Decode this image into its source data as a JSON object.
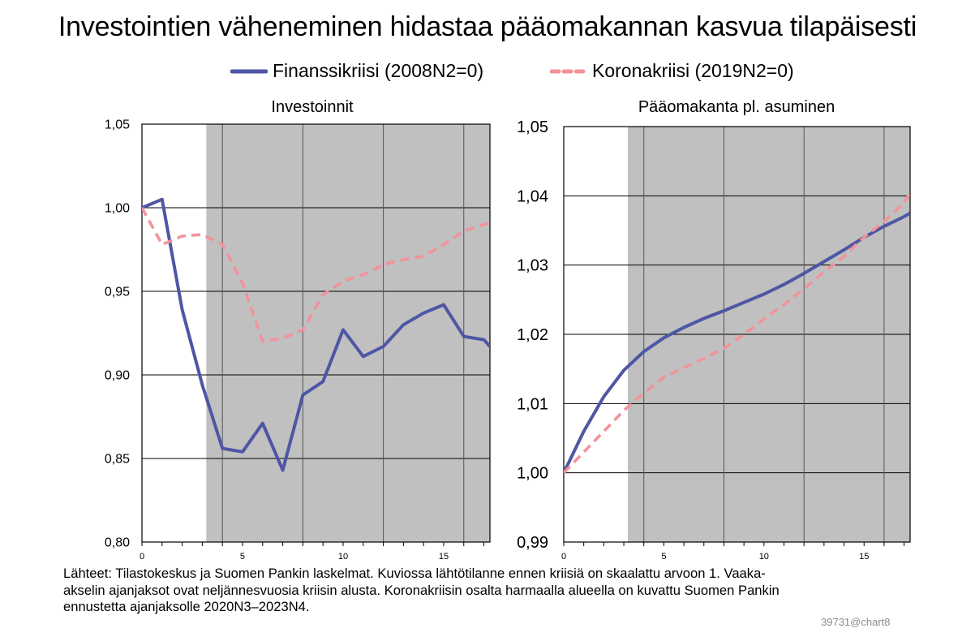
{
  "title": "Investointien väheneminen hidastaa pääomakannan kasvua tilapäisesti",
  "legend": [
    {
      "label": "Finanssikriisi (2008N2=0)",
      "color": "#4f56a4",
      "style": "solid"
    },
    {
      "label": "Koronakriisi (2019N2=0)",
      "color": "#f2939b",
      "style": "dashed"
    }
  ],
  "footnote": [
    "Lähteet: Tilastokeskus ja Suomen Pankin laskelmat. Kuviossa lähtötilanne ennen kriisiä on skaalattu arvoon 1. Vaaka-",
    "akselin ajanjaksot ovat neljännesvuosia  kriisin alusta. Koronakriisin osalta harmaalla alueella on kuvattu Suomen Pankin",
    "ennustetta ajanjaksolle 2020N3–2023N4."
  ],
  "stamp": "39731@chart8",
  "chart_data": [
    {
      "type": "line",
      "title": "Investoinnit",
      "xlim": [
        0,
        17.3
      ],
      "ylim": [
        0.8,
        1.05
      ],
      "xticks": [
        0,
        5,
        10,
        15
      ],
      "xtick_labels": [
        "0",
        "5",
        "10",
        "15"
      ],
      "yticks": [
        0.8,
        0.85,
        0.9,
        0.95,
        1.0,
        1.05
      ],
      "ytick_labels": [
        "0,80",
        "0,85",
        "0,90",
        "0,95",
        "1,00",
        "1,05"
      ],
      "shaded_from": 3.2,
      "shade_color": "#c0c0c0",
      "grid": true,
      "series": [
        {
          "name": "Finanssikriisi (2008N2=0)",
          "color": "#4f56a4",
          "dash": false,
          "x": [
            0,
            1,
            2,
            3,
            4,
            5,
            6,
            7,
            8,
            9,
            10,
            11,
            12,
            13,
            14,
            15,
            16,
            17,
            17.3
          ],
          "values": [
            1.0,
            1.005,
            0.939,
            0.894,
            0.856,
            0.854,
            0.871,
            0.843,
            0.888,
            0.896,
            0.927,
            0.911,
            0.917,
            0.93,
            0.937,
            0.942,
            0.923,
            0.921,
            0.917
          ]
        },
        {
          "name": "Koronakriisi (2019N2=0)",
          "color": "#f2939b",
          "dash": true,
          "x": [
            0,
            1,
            2,
            3,
            4,
            5,
            6,
            7,
            8,
            9,
            10,
            11,
            12,
            13,
            14,
            15,
            16,
            17,
            17.3
          ],
          "values": [
            1.0,
            0.978,
            0.983,
            0.984,
            0.978,
            0.955,
            0.92,
            0.922,
            0.927,
            0.948,
            0.956,
            0.96,
            0.966,
            0.969,
            0.971,
            0.978,
            0.986,
            0.99,
            0.991
          ]
        }
      ]
    },
    {
      "type": "line",
      "title": "Pääomakanta pl. asuminen",
      "xlim": [
        0,
        17.3
      ],
      "ylim": [
        0.99,
        1.05
      ],
      "xticks": [
        0,
        5,
        10,
        15
      ],
      "xtick_labels": [
        "0",
        "5",
        "10",
        "15"
      ],
      "yticks": [
        0.99,
        1.0,
        1.01,
        1.02,
        1.03,
        1.04,
        1.05
      ],
      "ytick_labels": [
        "0,99",
        "1,00",
        "1,01",
        "1,02",
        "1,03",
        "1,04",
        "1,05"
      ],
      "shaded_from": 3.2,
      "shade_color": "#c0c0c0",
      "grid": true,
      "series": [
        {
          "name": "Finanssikriisi (2008N2=0)",
          "color": "#4f56a4",
          "dash": false,
          "x": [
            0,
            1,
            2,
            3,
            4,
            5,
            6,
            7,
            8,
            9,
            10,
            11,
            12,
            13,
            14,
            15,
            16,
            17,
            17.3
          ],
          "values": [
            1.0,
            1.006,
            1.011,
            1.0148,
            1.0175,
            1.0195,
            1.021,
            1.0223,
            1.0234,
            1.0246,
            1.0258,
            1.0272,
            1.0288,
            1.0305,
            1.0322,
            1.034,
            1.0356,
            1.037,
            1.0375
          ]
        },
        {
          "name": "Koronakriisi (2019N2=0)",
          "color": "#f2939b",
          "dash": true,
          "x": [
            0,
            1,
            2,
            3,
            4,
            5,
            6,
            7,
            8,
            9,
            10,
            11,
            12,
            13,
            14,
            15,
            16,
            17,
            17.3
          ],
          "values": [
            1.0,
            1.003,
            1.006,
            1.009,
            1.0115,
            1.0138,
            1.0152,
            1.0165,
            1.018,
            1.02,
            1.0222,
            1.0243,
            1.0266,
            1.029,
            1.0313,
            1.034,
            1.0363,
            1.039,
            1.0405
          ]
        }
      ]
    }
  ]
}
